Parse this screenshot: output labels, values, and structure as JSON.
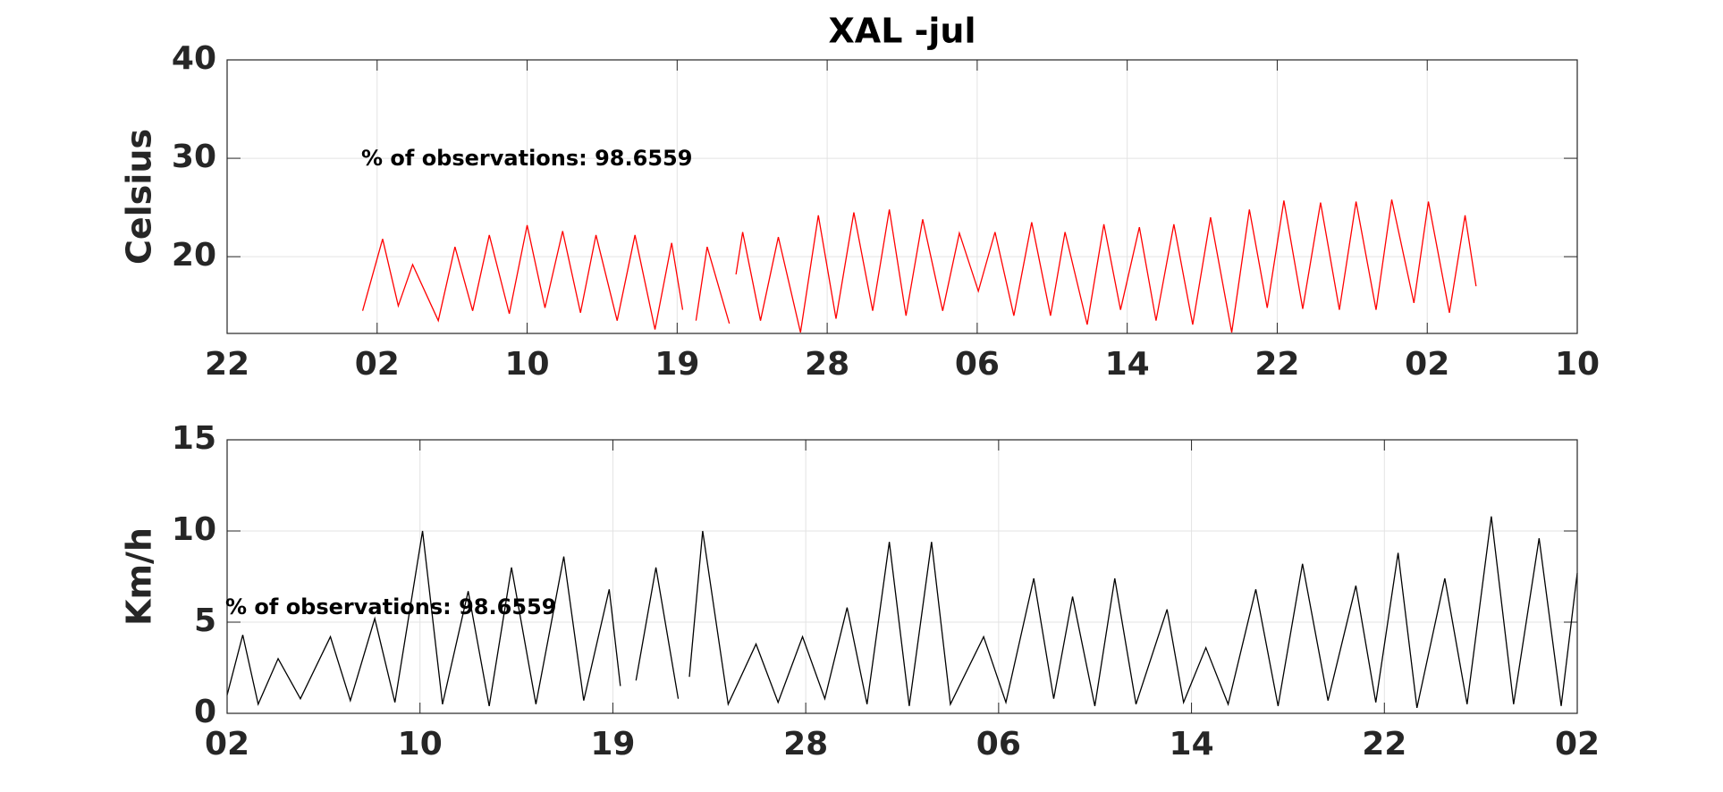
{
  "chart_data": [
    {
      "type": "line",
      "title": "XAL -jul",
      "ylabel": "Celsius",
      "annotation": "% of observations: 98.6559",
      "x": [
        8.13,
        9.33,
        10.27,
        11.13,
        12.67,
        13.67,
        14.73,
        15.73,
        16.93,
        18.0,
        19.07,
        20.13,
        21.2,
        22.13,
        23.4,
        24.47,
        25.67,
        26.67,
        27.33,
        27.73,
        28.13,
        28.8,
        30.13,
        30.33,
        30.53,
        30.93,
        32.0,
        33.07,
        34.4,
        35.47,
        36.53,
        37.6,
        38.73,
        39.73,
        40.73,
        41.73,
        42.93,
        43.93,
        45.07,
        46.07,
        47.2,
        48.27,
        49.4,
        50.27,
        51.6,
        52.6,
        53.6,
        54.73,
        55.73,
        56.8,
        57.93,
        59.0,
        60.27,
        61.33,
        62.4,
        63.4,
        64.53,
        65.6,
        66.73,
        67.73,
        68.93,
        69.87,
        71.2,
        72.07,
        73.33,
        74.27,
        74.93
      ],
      "series": [
        {
          "color": "#ff0000",
          "values": [
            14.5,
            21.8,
            15,
            19.2,
            13.5,
            21,
            14.5,
            22.2,
            14.2,
            23.2,
            14.8,
            22.6,
            14.3,
            22.2,
            13.5,
            22.2,
            12.6,
            21.4,
            14.6,
            null,
            13.5,
            21,
            13.2,
            null,
            18.2,
            22.5,
            13.5,
            22,
            12.3,
            24.2,
            13.7,
            24.5,
            14.5,
            24.8,
            14,
            23.8,
            14.5,
            22.4,
            16.5,
            22.5,
            14,
            23.5,
            14,
            22.5,
            13.1,
            23.3,
            14.6,
            23,
            13.5,
            23.3,
            13.1,
            24,
            12.3,
            24.8,
            14.8,
            25.7,
            14.7,
            25.5,
            14.6,
            25.6,
            14.6,
            25.8,
            15.3,
            25.6,
            14.3,
            24.2,
            17
          ]
        }
      ],
      "xlim": [
        0,
        81
      ],
      "xticks": [
        {
          "value": 0,
          "label": "22"
        },
        {
          "value": 9,
          "label": "02"
        },
        {
          "value": 18,
          "label": "10"
        },
        {
          "value": 27,
          "label": "19"
        },
        {
          "value": 36,
          "label": "28"
        },
        {
          "value": 45,
          "label": "06"
        },
        {
          "value": 54,
          "label": "14"
        },
        {
          "value": 63,
          "label": "22"
        },
        {
          "value": 72,
          "label": "02"
        },
        {
          "value": 81,
          "label": "10"
        }
      ],
      "ylim": [
        12.2,
        40
      ],
      "yticks": [
        20,
        30,
        40
      ],
      "grid": true
    },
    {
      "type": "line",
      "ylabel": "Km/h",
      "annotation": "% of observations: 98.6559",
      "x": [
        9.0,
        9.73,
        10.45,
        11.38,
        12.42,
        13.82,
        14.75,
        15.89,
        16.83,
        18.12,
        19.05,
        20.25,
        21.23,
        22.27,
        23.41,
        24.71,
        25.64,
        26.83,
        27.35,
        27.7,
        28.08,
        29.01,
        30.05,
        30.3,
        30.57,
        31.19,
        32.38,
        33.68,
        34.71,
        35.85,
        36.89,
        37.93,
        38.86,
        39.9,
        40.83,
        41.87,
        42.75,
        44.3,
        45.34,
        46.64,
        47.57,
        48.45,
        49.49,
        50.42,
        51.41,
        52.86,
        53.63,
        54.67,
        55.71,
        57.0,
        58.04,
        59.18,
        60.37,
        61.67,
        62.6,
        63.64,
        64.52,
        65.82,
        66.86,
        67.99,
        69.03,
        70.22,
        71.25,
        72.0
      ],
      "series": [
        {
          "color": "#000000",
          "values": [
            1,
            4.3,
            0.5,
            3,
            0.8,
            4.2,
            0.7,
            5.2,
            0.6,
            10,
            0.5,
            6.7,
            0.4,
            8,
            0.5,
            8.6,
            0.7,
            6.8,
            1.5,
            null,
            1.8,
            8,
            0.8,
            null,
            2,
            10,
            0.5,
            3.8,
            0.6,
            4.2,
            0.8,
            5.8,
            0.5,
            9.4,
            0.4,
            9.4,
            0.5,
            4.2,
            0.6,
            7.4,
            0.8,
            6.4,
            0.4,
            7.4,
            0.5,
            5.7,
            0.6,
            3.6,
            0.5,
            6.8,
            0.4,
            8.2,
            0.7,
            7,
            0.6,
            8.8,
            0.3,
            7.4,
            0.5,
            10.8,
            0.5,
            9.6,
            0.4,
            7.7
          ]
        }
      ],
      "xlim": [
        9,
        72
      ],
      "xticks": [
        {
          "value": 9,
          "label": "02"
        },
        {
          "value": 18,
          "label": "10"
        },
        {
          "value": 27,
          "label": "19"
        },
        {
          "value": 36,
          "label": "28"
        },
        {
          "value": 45,
          "label": "06"
        },
        {
          "value": 54,
          "label": "14"
        },
        {
          "value": 63,
          "label": "22"
        },
        {
          "value": 72,
          "label": "02"
        }
      ],
      "ylim": [
        0,
        15
      ],
      "yticks": [
        0,
        5,
        10,
        15
      ],
      "grid": true
    }
  ]
}
